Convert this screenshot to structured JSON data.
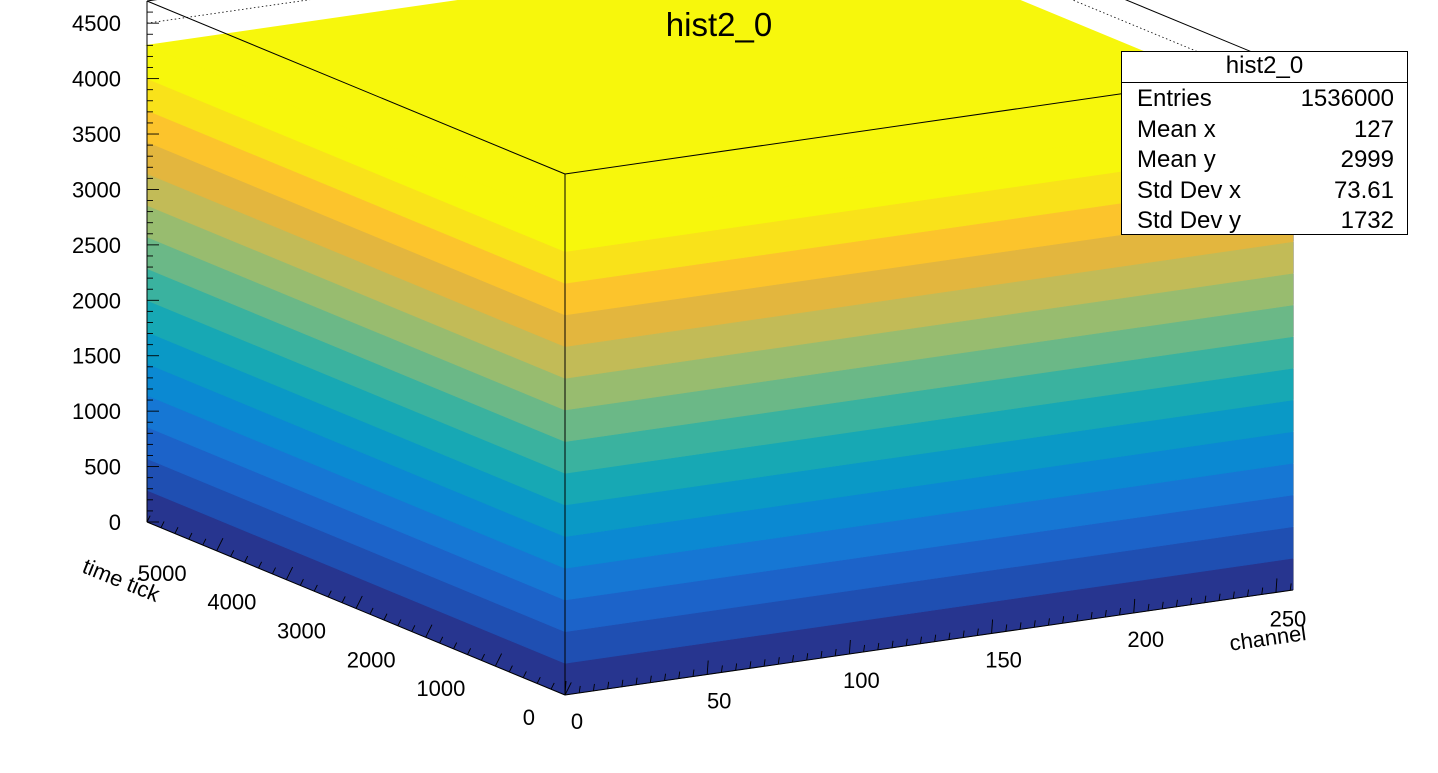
{
  "chart_data": {
    "type": "lego2d",
    "title": "hist2_0",
    "xlabel": "channel",
    "ylabel": "time tick",
    "zlabel": "",
    "xlim": [
      0,
      256
    ],
    "ylim": [
      0,
      6000
    ],
    "zlim": [
      0,
      4700
    ],
    "x_ticks": [
      0,
      50,
      100,
      150,
      200,
      250
    ],
    "y_ticks": [
      0,
      1000,
      2000,
      3000,
      4000,
      5000
    ],
    "z_ticks": [
      0,
      500,
      1000,
      1500,
      2000,
      2500,
      3000,
      3500,
      4000,
      4500
    ],
    "bin_content_uniform": 4300,
    "colormap": [
      "#27358f",
      "#1f4fb2",
      "#1c63c9",
      "#1677d4",
      "#0b89d2",
      "#0a99c6",
      "#17a8b4",
      "#3ab29f",
      "#6bb887",
      "#98bc6f",
      "#c2bb57",
      "#e3b63e",
      "#fcc42c",
      "#f9e21a",
      "#f7f70c"
    ],
    "stats": {
      "title": "hist2_0",
      "rows": [
        {
          "label": "Entries",
          "value": "1536000"
        },
        {
          "label": "Mean x",
          "value": "127"
        },
        {
          "label": "Mean y",
          "value": "2999"
        },
        {
          "label": "Std Dev x",
          "value": "73.61"
        },
        {
          "label": "Std Dev y",
          "value": "1732"
        }
      ]
    }
  }
}
